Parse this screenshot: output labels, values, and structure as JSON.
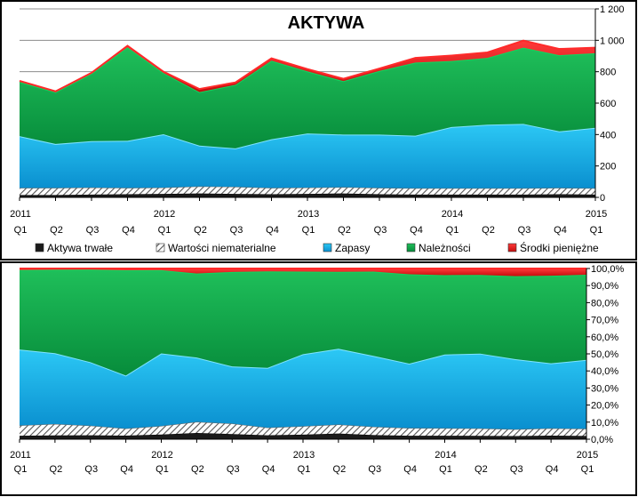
{
  "chart_data": {
    "type": "area",
    "categories": [
      "Q1",
      "Q2",
      "Q3",
      "Q4",
      "Q1",
      "Q2",
      "Q3",
      "Q4",
      "Q1",
      "Q2",
      "Q3",
      "Q4",
      "Q1",
      "Q2",
      "Q3",
      "Q4",
      "Q1"
    ],
    "year_labels": [
      {
        "index": 0,
        "label": "2011"
      },
      {
        "index": 4,
        "label": "2012"
      },
      {
        "index": 8,
        "label": "2013"
      },
      {
        "index": 12,
        "label": "2014"
      },
      {
        "index": 16,
        "label": "2015"
      }
    ],
    "legend": [
      {
        "name": "Aktywa trwałe",
        "color": "#1a1a1a",
        "pattern": "solid"
      },
      {
        "name": "Wartości niematerialne",
        "color": "#7f7f7f",
        "pattern": "hatch"
      },
      {
        "name": "Zapasy",
        "color": "#18aee6",
        "pattern": "solid"
      },
      {
        "name": "Należności",
        "color": "#0fa34a",
        "pattern": "solid"
      },
      {
        "name": "Środki pieniężne",
        "color": "#e21b1b",
        "pattern": "solid"
      }
    ],
    "series": [
      {
        "name": "Aktywa trwałe",
        "values": [
          15,
          15,
          18,
          20,
          22,
          25,
          22,
          20,
          22,
          25,
          20,
          18,
          18,
          18,
          18,
          20,
          18
        ]
      },
      {
        "name": "Wartości niematerialne",
        "values": [
          45,
          45,
          45,
          40,
          40,
          45,
          45,
          40,
          40,
          40,
          40,
          40,
          40,
          40,
          40,
          40,
          40
        ]
      },
      {
        "name": "Zapasy",
        "values": [
          330,
          280,
          295,
          300,
          340,
          260,
          245,
          310,
          345,
          335,
          340,
          335,
          390,
          405,
          410,
          360,
          385
        ]
      },
      {
        "name": "Należności",
        "values": [
          345,
          330,
          430,
          595,
          390,
          340,
          405,
          500,
          395,
          340,
          405,
          465,
          420,
          425,
          485,
          485,
          475
        ]
      },
      {
        "name": "Środki pieniężne",
        "values": [
          7,
          5,
          5,
          10,
          8,
          20,
          15,
          15,
          15,
          15,
          15,
          30,
          35,
          35,
          45,
          40,
          35
        ]
      }
    ],
    "panels": [
      {
        "title": "AKTYWA",
        "ylim": [
          0,
          1200
        ],
        "yticks": [
          "0",
          "200",
          "400",
          "600",
          "800",
          "1 000",
          "1 200"
        ],
        "mode": "absolute"
      },
      {
        "title": "",
        "ylim": [
          0,
          100
        ],
        "yticks": [
          "0,0%",
          "10,0%",
          "20,0%",
          "30,0%",
          "40,0%",
          "50,0%",
          "60,0%",
          "70,0%",
          "80,0%",
          "90,0%",
          "100,0%"
        ],
        "mode": "percent"
      }
    ]
  }
}
